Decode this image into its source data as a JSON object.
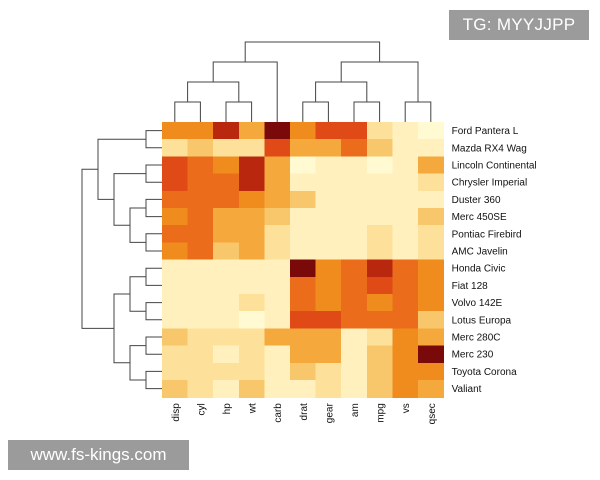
{
  "watermark_top": "TG: MYYJJPP",
  "watermark_bottom": "www.fs-kings.com",
  "colors": {
    "scale": [
      "#fffad2",
      "#fff0be",
      "#fde09a",
      "#f9c76b",
      "#f5a93c",
      "#f08c1e",
      "#eb6c1a",
      "#df4a16",
      "#b8270e",
      "#7a0a0a"
    ],
    "dendrogram": "#444444",
    "badge": "#9b9b9b"
  },
  "chart_data": {
    "type": "heatmap",
    "title": "",
    "color_scale": "sequential, light yellow (low) to dark red (high), values 0-9",
    "columns": [
      "disp",
      "cyl",
      "hp",
      "wt",
      "carb",
      "drat",
      "gear",
      "am",
      "mpg",
      "vs",
      "qsec"
    ],
    "rows": [
      "Ford Pantera L",
      "Mazda RX4 Wag",
      "Lincoln Continental",
      "Chrysler Imperial",
      "Duster 360",
      "Merc 450SE",
      "Pontiac Firebird",
      "AMC Javelin",
      "Honda Civic",
      "Fiat 128",
      "Volvo 142E",
      "Lotus Europa",
      "Merc 280C",
      "Merc 230",
      "Toyota Corona",
      "Valiant"
    ],
    "values": [
      [
        5,
        5,
        8,
        4,
        9,
        5,
        7,
        7,
        2,
        1,
        0
      ],
      [
        2,
        3,
        2,
        2,
        7,
        4,
        4,
        6,
        3,
        1,
        1
      ],
      [
        7,
        6,
        5,
        8,
        4,
        0,
        1,
        1,
        0,
        1,
        4
      ],
      [
        7,
        6,
        6,
        8,
        4,
        1,
        1,
        1,
        1,
        1,
        2
      ],
      [
        6,
        6,
        6,
        5,
        4,
        3,
        1,
        1,
        1,
        1,
        1
      ],
      [
        5,
        6,
        4,
        4,
        3,
        1,
        1,
        1,
        1,
        1,
        3
      ],
      [
        6,
        6,
        4,
        4,
        2,
        1,
        1,
        1,
        2,
        1,
        2
      ],
      [
        5,
        6,
        3,
        4,
        2,
        1,
        1,
        1,
        2,
        1,
        2
      ],
      [
        1,
        1,
        1,
        1,
        1,
        9,
        5,
        6,
        8,
        6,
        5
      ],
      [
        1,
        1,
        1,
        1,
        1,
        6,
        5,
        6,
        7,
        6,
        5
      ],
      [
        1,
        1,
        1,
        2,
        1,
        6,
        5,
        6,
        5,
        6,
        5
      ],
      [
        1,
        1,
        1,
        0,
        1,
        7,
        7,
        6,
        6,
        6,
        3
      ],
      [
        3,
        2,
        2,
        2,
        4,
        4,
        4,
        1,
        2,
        5,
        4
      ],
      [
        2,
        2,
        1,
        2,
        1,
        4,
        4,
        1,
        3,
        5,
        9
      ],
      [
        2,
        2,
        2,
        2,
        1,
        3,
        2,
        1,
        3,
        5,
        5
      ],
      [
        3,
        2,
        1,
        3,
        1,
        1,
        2,
        1,
        3,
        5,
        4
      ]
    ],
    "row_dendrogram_merges": [
      [
        0,
        1
      ],
      [
        2,
        3
      ],
      [
        4,
        5
      ],
      [
        6,
        7
      ],
      [
        "n2",
        "n3"
      ],
      [
        "n1",
        "n4"
      ],
      [
        "n5",
        "n0"
      ],
      [
        8,
        9
      ],
      [
        10,
        11
      ],
      [
        "n7",
        "n8"
      ],
      [
        12,
        13
      ],
      [
        14,
        15
      ],
      [
        "n10",
        "n11"
      ],
      [
        "n9",
        "n12"
      ],
      [
        "n6",
        "n13"
      ]
    ],
    "column_dendrogram_merges": [
      [
        0,
        1
      ],
      [
        2,
        3
      ],
      [
        "n0",
        "n1"
      ],
      [
        "n2",
        4
      ],
      [
        5,
        6
      ],
      [
        7,
        8
      ],
      [
        "n4",
        "n5"
      ],
      [
        9,
        10
      ],
      [
        "n6",
        "n7"
      ],
      [
        "n3",
        "n8"
      ]
    ],
    "legend": "none"
  }
}
